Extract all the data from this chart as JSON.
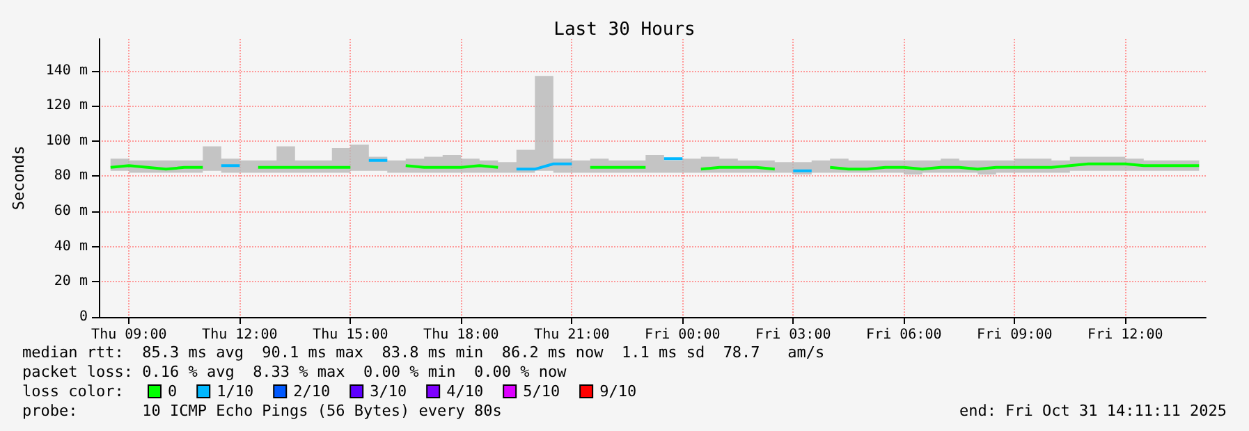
{
  "chart_data": {
    "type": "line",
    "title": "Last 30 Hours",
    "ylabel": "Seconds",
    "legend_title": "loss color:",
    "annotations": [
      "median rtt:  85.3 ms avg  90.1 ms max  83.8 ms min  86.2 ms now  1.1 ms sd  78.7   am/s",
      "packet loss: 0.16 % avg  8.33 % max  0.00 % min  0.00 % now",
      "probe:       10 ICMP Echo Pings (56 Bytes) every 80s",
      "end: Fri Oct 31 14:11:11 2025"
    ],
    "x": [
      "2025-10-30T08:30",
      "2025-10-30T09:00",
      "2025-10-30T09:30",
      "2025-10-30T10:00",
      "2025-10-30T10:30",
      "2025-10-30T11:00",
      "2025-10-30T11:30",
      "2025-10-30T12:00",
      "2025-10-30T12:30",
      "2025-10-30T13:00",
      "2025-10-30T13:30",
      "2025-10-30T14:00",
      "2025-10-30T14:30",
      "2025-10-30T15:00",
      "2025-10-30T15:30",
      "2025-10-30T16:00",
      "2025-10-30T16:30",
      "2025-10-30T17:00",
      "2025-10-30T17:30",
      "2025-10-30T18:00",
      "2025-10-30T18:30",
      "2025-10-30T19:00",
      "2025-10-30T19:30",
      "2025-10-30T20:00",
      "2025-10-30T20:30",
      "2025-10-30T21:00",
      "2025-10-30T21:30",
      "2025-10-30T22:00",
      "2025-10-30T22:30",
      "2025-10-30T23:00",
      "2025-10-30T23:30",
      "2025-10-31T00:00",
      "2025-10-31T00:30",
      "2025-10-31T01:00",
      "2025-10-31T01:30",
      "2025-10-31T02:00",
      "2025-10-31T02:30",
      "2025-10-31T03:00",
      "2025-10-31T03:30",
      "2025-10-31T04:00",
      "2025-10-31T04:30",
      "2025-10-31T05:00",
      "2025-10-31T05:30",
      "2025-10-31T06:00",
      "2025-10-31T06:30",
      "2025-10-31T07:00",
      "2025-10-31T07:30",
      "2025-10-31T08:00",
      "2025-10-31T08:30",
      "2025-10-31T09:00",
      "2025-10-31T09:30",
      "2025-10-31T10:00",
      "2025-10-31T10:30",
      "2025-10-31T11:00",
      "2025-10-31T11:30",
      "2025-10-31T12:00",
      "2025-10-31T12:30",
      "2025-10-31T13:00",
      "2025-10-31T13:30",
      "2025-10-31T14:00"
    ],
    "xlim": [
      "2025-10-30T08:11",
      "2025-10-31T14:11"
    ],
    "xticks": [
      {
        "value": "2025-10-30T09:00",
        "label": "Thu 09:00"
      },
      {
        "value": "2025-10-30T12:00",
        "label": "Thu 12:00"
      },
      {
        "value": "2025-10-30T15:00",
        "label": "Thu 15:00"
      },
      {
        "value": "2025-10-30T18:00",
        "label": "Thu 18:00"
      },
      {
        "value": "2025-10-30T21:00",
        "label": "Thu 21:00"
      },
      {
        "value": "2025-10-31T00:00",
        "label": "Fri 00:00"
      },
      {
        "value": "2025-10-31T03:00",
        "label": "Fri 03:00"
      },
      {
        "value": "2025-10-31T06:00",
        "label": "Fri 06:00"
      },
      {
        "value": "2025-10-31T09:00",
        "label": "Fri 09:00"
      },
      {
        "value": "2025-10-31T12:00",
        "label": "Fri 12:00"
      }
    ],
    "ylim": [
      0,
      158
    ],
    "yticks": [
      0,
      {
        "value": 20,
        "label": "20 m"
      },
      {
        "value": 40,
        "label": "40 m"
      },
      {
        "value": 60,
        "label": "60 m"
      },
      {
        "value": 80,
        "label": "80 m"
      },
      {
        "value": 100,
        "label": "100 m"
      },
      {
        "value": 120,
        "label": "120 m"
      },
      {
        "value": 140,
        "label": "140 m"
      }
    ],
    "grid": true,
    "legend": "bottom",
    "marker": "none",
    "series": [
      {
        "name": "0",
        "color": "#00ff00",
        "values": [
          85,
          86,
          85,
          84,
          85,
          85,
          null,
          null,
          85,
          85,
          85,
          85,
          85,
          85,
          null,
          null,
          86,
          85,
          85,
          85,
          86,
          85,
          null,
          null,
          null,
          null,
          85,
          85,
          85,
          85,
          null,
          null,
          84,
          85,
          85,
          85,
          84,
          null,
          null,
          85,
          84,
          84,
          85,
          85,
          84,
          85,
          85,
          84,
          85,
          85,
          85,
          85,
          86,
          87,
          87,
          87,
          86,
          86,
          86,
          86
        ],
        "lower": [
          82,
          83,
          82,
          82,
          82,
          82,
          83,
          82,
          82,
          82,
          82,
          82,
          82,
          82,
          83,
          83,
          82,
          82,
          82,
          82,
          82,
          82,
          82,
          82,
          83,
          82,
          82,
          82,
          82,
          82,
          82,
          82,
          82,
          82,
          82,
          82,
          82,
          82,
          81,
          82,
          82,
          82,
          82,
          82,
          81,
          82,
          82,
          82,
          81,
          82,
          82,
          82,
          82,
          83,
          83,
          83,
          83,
          83,
          83,
          83
        ],
        "upper": [
          89,
          90,
          89,
          89,
          89,
          89,
          97,
          90,
          89,
          89,
          97,
          89,
          89,
          96,
          98,
          91,
          89,
          90,
          91,
          92,
          90,
          89,
          88,
          95,
          137,
          90,
          89,
          90,
          89,
          89,
          92,
          89,
          90,
          91,
          90,
          89,
          89,
          88,
          88,
          89,
          90,
          89,
          89,
          89,
          89,
          89,
          90,
          89,
          89,
          89,
          90,
          90,
          89,
          91,
          91,
          91,
          90,
          89,
          89,
          89
        ]
      },
      {
        "name": "1/10",
        "color": "#00b8ff",
        "values": [
          null,
          null,
          null,
          null,
          null,
          null,
          86,
          86,
          null,
          null,
          null,
          null,
          null,
          null,
          89,
          89,
          null,
          null,
          null,
          null,
          null,
          null,
          84,
          84,
          87,
          87,
          null,
          null,
          null,
          null,
          90,
          90,
          null,
          null,
          null,
          null,
          null,
          83,
          83,
          null,
          null,
          null,
          null,
          null,
          null,
          null,
          null,
          null,
          null,
          null,
          null,
          null,
          null,
          null,
          null,
          null,
          null,
          null,
          null,
          null
        ]
      },
      {
        "name": "2/10",
        "color": "#0059ff",
        "values": [
          null,
          null,
          null,
          null,
          null,
          null,
          null,
          null,
          null,
          null,
          null,
          null,
          null,
          null,
          null,
          null,
          null,
          null,
          null,
          null,
          null,
          null,
          null,
          null,
          null,
          null,
          null,
          null,
          null,
          null,
          null,
          null,
          null,
          null,
          null,
          null,
          null,
          null,
          null,
          null,
          null,
          null,
          null,
          null,
          null,
          null,
          null,
          null,
          null,
          null,
          null,
          null,
          null,
          null,
          null,
          null,
          null,
          null,
          null,
          null
        ]
      },
      {
        "name": "3/10",
        "color": "#5e00ff",
        "values": [
          null,
          null,
          null,
          null,
          null,
          null,
          null,
          null,
          null,
          null,
          null,
          null,
          null,
          null,
          null,
          null,
          null,
          null,
          null,
          null,
          null,
          null,
          null,
          null,
          null,
          null,
          null,
          null,
          null,
          null,
          null,
          null,
          null,
          null,
          null,
          null,
          null,
          null,
          null,
          null,
          null,
          null,
          null,
          null,
          null,
          null,
          null,
          null,
          null,
          null,
          null,
          null,
          null,
          null,
          null,
          null,
          null,
          null,
          null,
          null
        ]
      },
      {
        "name": "4/10",
        "color": "#7e00ff",
        "values": [
          null,
          null,
          null,
          null,
          null,
          null,
          null,
          null,
          null,
          null,
          null,
          null,
          null,
          null,
          null,
          null,
          null,
          null,
          null,
          null,
          null,
          null,
          null,
          null,
          null,
          null,
          null,
          null,
          null,
          null,
          null,
          null,
          null,
          null,
          null,
          null,
          null,
          null,
          null,
          null,
          null,
          null,
          null,
          null,
          null,
          null,
          null,
          null,
          null,
          null,
          null,
          null,
          null,
          null,
          null,
          null,
          null,
          null,
          null,
          null
        ]
      },
      {
        "name": "5/10",
        "color": "#dd00ff",
        "values": [
          null,
          null,
          null,
          null,
          null,
          null,
          null,
          null,
          null,
          null,
          null,
          null,
          null,
          null,
          null,
          null,
          null,
          null,
          null,
          null,
          null,
          null,
          null,
          null,
          null,
          null,
          null,
          null,
          null,
          null,
          null,
          null,
          null,
          null,
          null,
          null,
          null,
          null,
          null,
          null,
          null,
          null,
          null,
          null,
          null,
          null,
          null,
          null,
          null,
          null,
          null,
          null,
          null,
          null,
          null,
          null,
          null,
          null,
          null,
          null
        ]
      },
      {
        "name": "9/10",
        "color": "#ff0000",
        "values": [
          null,
          null,
          null,
          null,
          null,
          null,
          null,
          null,
          null,
          null,
          null,
          null,
          null,
          null,
          null,
          null,
          null,
          null,
          null,
          null,
          null,
          null,
          null,
          null,
          null,
          null,
          null,
          null,
          null,
          null,
          null,
          null,
          null,
          null,
          null,
          null,
          null,
          null,
          null,
          null,
          null,
          null,
          null,
          null,
          null,
          null,
          null,
          null,
          null,
          null,
          null,
          null,
          null,
          null,
          null,
          null,
          null,
          null,
          null,
          null
        ]
      }
    ]
  }
}
